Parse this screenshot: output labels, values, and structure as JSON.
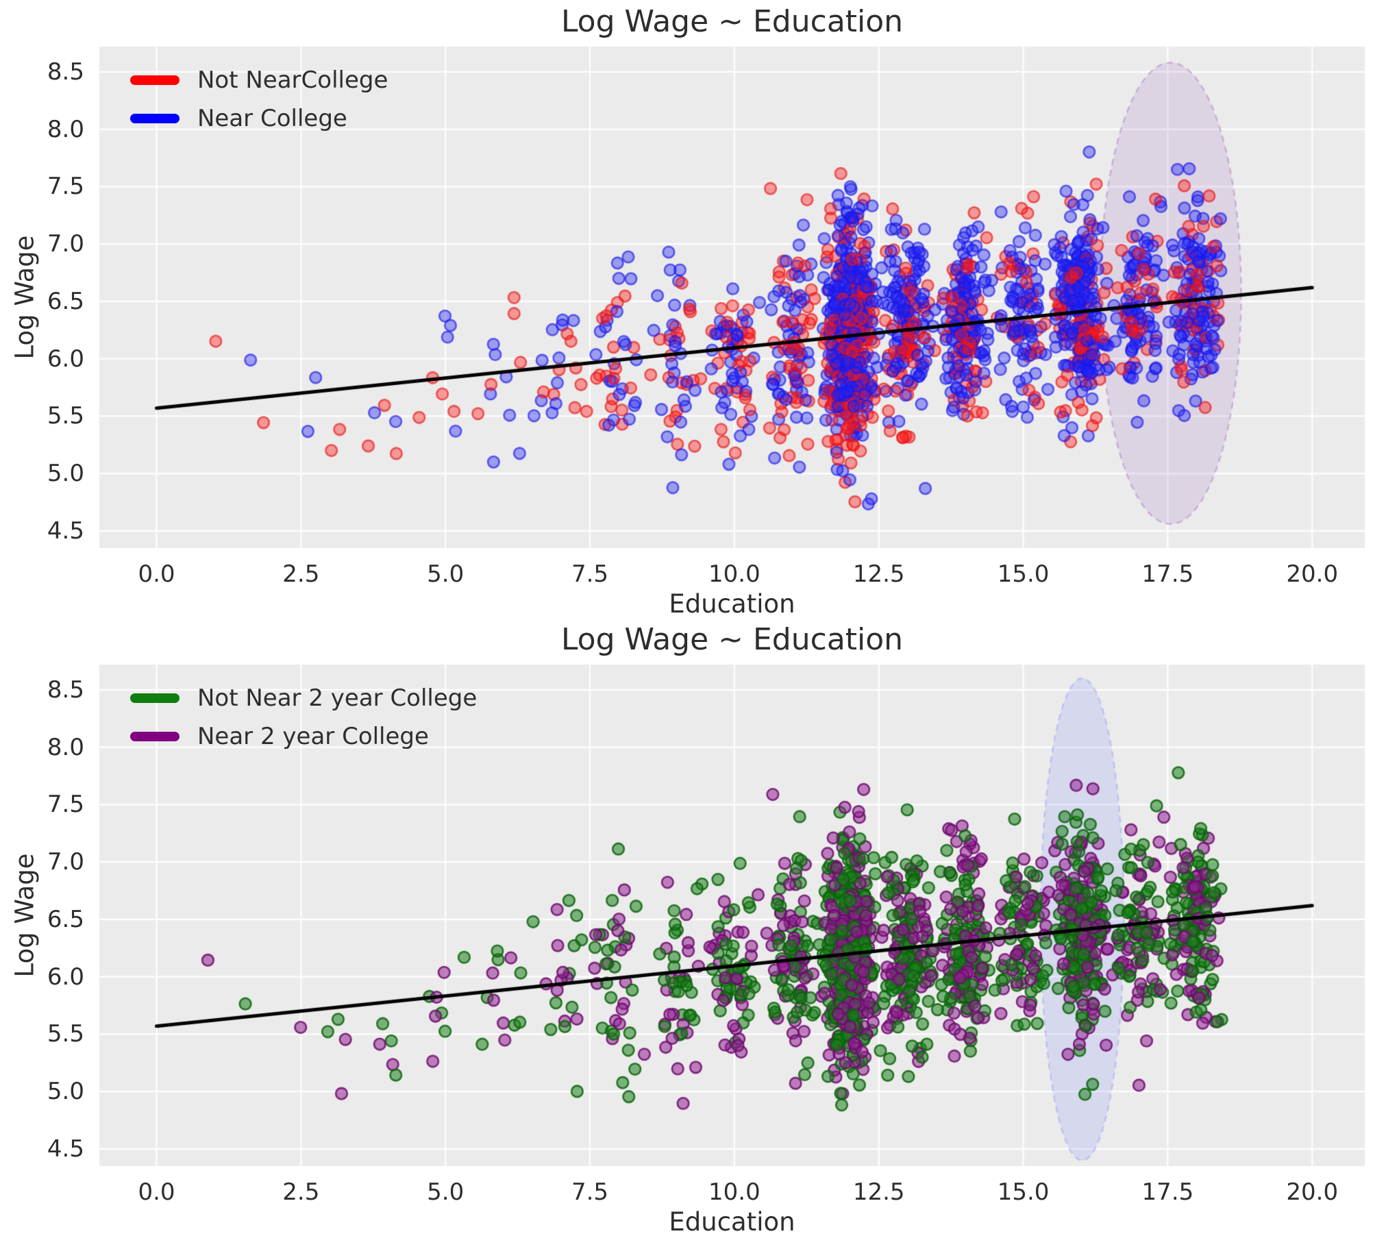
{
  "figure": {
    "background": "#ffffff",
    "panel_background": "#ebebeb",
    "grid_color": "#ffffff",
    "text_color": "#2d2d2d",
    "regression_color": "#000000"
  },
  "chart_data": [
    {
      "type": "scatter",
      "title": "Log Wage ~ Education",
      "xlabel": "Education",
      "ylabel": "Log Wage",
      "xlim": [
        -0.99,
        20.91
      ],
      "ylim": [
        4.35,
        8.72
      ],
      "grid": true,
      "x_ticks": [
        {
          "value": 0,
          "label": "0.0"
        },
        {
          "value": 2.5,
          "label": "2.5"
        },
        {
          "value": 5,
          "label": "5.0"
        },
        {
          "value": 7.5,
          "label": "7.5"
        },
        {
          "value": 10,
          "label": "10.0"
        },
        {
          "value": 12.5,
          "label": "12.5"
        },
        {
          "value": 15,
          "label": "15.0"
        },
        {
          "value": 17.5,
          "label": "17.5"
        },
        {
          "value": 20,
          "label": "20.0"
        }
      ],
      "y_ticks": [
        {
          "value": 4.5,
          "label": "4.5"
        },
        {
          "value": 5.0,
          "label": "5.0"
        },
        {
          "value": 5.5,
          "label": "5.5"
        },
        {
          "value": 6.0,
          "label": "6.0"
        },
        {
          "value": 6.5,
          "label": "6.5"
        },
        {
          "value": 7.0,
          "label": "7.0"
        },
        {
          "value": 7.5,
          "label": "7.5"
        },
        {
          "value": 8.0,
          "label": "8.0"
        },
        {
          "value": 8.5,
          "label": "8.5"
        }
      ],
      "legend": {
        "position": "upper-left",
        "items": [
          {
            "label": "Not NearCollege",
            "color": "#ff0000"
          },
          {
            "label": "Near College",
            "color": "#0000ff"
          }
        ]
      },
      "regression_line": {
        "x1": 0,
        "y1": 5.57,
        "x2": 20,
        "y2": 6.62,
        "linewidth": 5
      },
      "highlight_ellipse": {
        "cx": 17.55,
        "cy": 6.57,
        "rx": 1.22,
        "ry": 2.01,
        "fill": "rgba(175,130,200,0.22)",
        "edge": "rgba(185,140,205,0.60)",
        "dashed": true
      },
      "point_style": {
        "radius": 8.3,
        "border": 2.6,
        "jitter": 0.5
      },
      "seed": 42,
      "series": [
        {
          "name": "Not NearCollege",
          "fill": "rgba(255,25,25,0.40)",
          "edge": "rgba(235,20,20,0.65)",
          "clusters": [
            [
              1,
              1,
              6.2,
              0.05
            ],
            [
              2,
              1,
              5.5,
              0.1
            ],
            [
              3,
              2,
              5.3,
              0.15
            ],
            [
              4,
              3,
              5.2,
              0.3
            ],
            [
              5,
              4,
              5.75,
              0.25
            ],
            [
              6,
              5,
              5.85,
              0.35
            ],
            [
              7,
              9,
              5.95,
              0.4
            ],
            [
              8,
              18,
              6.0,
              0.42
            ],
            [
              9,
              20,
              5.95,
              0.42
            ],
            [
              10,
              30,
              6.05,
              0.42
            ],
            [
              11,
              45,
              6.1,
              0.45
            ],
            [
              12,
              210,
              6.12,
              0.47
            ],
            [
              13,
              60,
              6.2,
              0.42
            ],
            [
              14,
              55,
              6.25,
              0.42
            ],
            [
              15,
              33,
              6.3,
              0.4
            ],
            [
              16,
              80,
              6.35,
              0.42
            ],
            [
              17,
              30,
              6.4,
              0.4
            ],
            [
              18,
              45,
              6.42,
              0.42
            ]
          ]
        },
        {
          "name": "Near College",
          "fill": "rgba(35,35,245,0.40)",
          "edge": "rgba(25,25,235,0.65)",
          "clusters": [
            [
              2,
              1,
              5.85,
              0.1
            ],
            [
              3,
              2,
              5.45,
              0.35
            ],
            [
              4,
              2,
              5.6,
              0.3
            ],
            [
              5,
              4,
              5.85,
              0.3
            ],
            [
              6,
              7,
              5.7,
              0.4
            ],
            [
              7,
              11,
              6.0,
              0.4
            ],
            [
              8,
              22,
              6.05,
              0.42
            ],
            [
              9,
              25,
              6.05,
              0.42
            ],
            [
              10,
              40,
              6.1,
              0.42
            ],
            [
              11,
              55,
              6.15,
              0.45
            ],
            [
              12,
              340,
              6.25,
              0.47
            ],
            [
              13,
              120,
              6.3,
              0.42
            ],
            [
              14,
              125,
              6.35,
              0.42
            ],
            [
              15,
              77,
              6.4,
              0.4
            ],
            [
              16,
              200,
              6.45,
              0.42
            ],
            [
              17,
              80,
              6.5,
              0.4
            ],
            [
              18,
              115,
              6.52,
              0.42
            ]
          ]
        }
      ]
    },
    {
      "type": "scatter",
      "title": "Log Wage ~ Education",
      "xlabel": "Education",
      "ylabel": "Log Wage",
      "xlim": [
        -0.99,
        20.91
      ],
      "ylim": [
        4.35,
        8.72
      ],
      "grid": true,
      "x_ticks": [
        {
          "value": 0,
          "label": "0.0"
        },
        {
          "value": 2.5,
          "label": "2.5"
        },
        {
          "value": 5,
          "label": "5.0"
        },
        {
          "value": 7.5,
          "label": "7.5"
        },
        {
          "value": 10,
          "label": "10.0"
        },
        {
          "value": 12.5,
          "label": "12.5"
        },
        {
          "value": 15,
          "label": "15.0"
        },
        {
          "value": 17.5,
          "label": "17.5"
        },
        {
          "value": 20,
          "label": "20.0"
        }
      ],
      "y_ticks": [
        {
          "value": 4.5,
          "label": "4.5"
        },
        {
          "value": 5.0,
          "label": "5.0"
        },
        {
          "value": 5.5,
          "label": "5.5"
        },
        {
          "value": 6.0,
          "label": "6.0"
        },
        {
          "value": 6.5,
          "label": "6.5"
        },
        {
          "value": 7.0,
          "label": "7.0"
        },
        {
          "value": 7.5,
          "label": "7.5"
        },
        {
          "value": 8.0,
          "label": "8.0"
        },
        {
          "value": 8.5,
          "label": "8.5"
        }
      ],
      "legend": {
        "position": "upper-left",
        "items": [
          {
            "label": "Not Near 2 year College",
            "color": "#0f7d0f"
          },
          {
            "label": "Near 2 year College",
            "color": "#800080"
          }
        ]
      },
      "regression_line": {
        "x1": 0,
        "y1": 5.57,
        "x2": 20,
        "y2": 6.62,
        "linewidth": 5
      },
      "highlight_ellipse": {
        "cx": 16.02,
        "cy": 6.5,
        "rx": 0.72,
        "ry": 2.1,
        "fill": "rgba(150,160,245,0.25)",
        "edge": "rgba(160,170,245,0.55)",
        "dashed": true
      },
      "point_style": {
        "radius": 8.3,
        "border": 2.6,
        "jitter": 0.5
      },
      "seed": 7,
      "series": [
        {
          "name": "Not Near 2 year College",
          "fill": "rgba(30,130,30,0.55)",
          "edge": "rgba(10,100,10,0.85)",
          "clusters": [
            [
              2,
              1,
              5.85,
              0.1
            ],
            [
              3,
              2,
              5.5,
              0.3
            ],
            [
              4,
              3,
              5.3,
              0.35
            ],
            [
              5,
              4,
              5.8,
              0.3
            ],
            [
              6,
              7,
              5.8,
              0.4
            ],
            [
              7,
              11,
              6.0,
              0.4
            ],
            [
              8,
              22,
              6.0,
              0.42
            ],
            [
              9,
              25,
              6.0,
              0.42
            ],
            [
              10,
              40,
              6.1,
              0.42
            ],
            [
              11,
              55,
              6.12,
              0.45
            ],
            [
              12,
              300,
              6.2,
              0.47
            ],
            [
              13,
              100,
              6.27,
              0.42
            ],
            [
              14,
              100,
              6.3,
              0.42
            ],
            [
              15,
              60,
              6.35,
              0.4
            ],
            [
              16,
              150,
              6.4,
              0.42
            ],
            [
              17,
              60,
              6.45,
              0.4
            ],
            [
              18,
              90,
              6.5,
              0.42
            ]
          ]
        },
        {
          "name": "Near 2 year College",
          "fill": "rgba(145,35,145,0.55)",
          "edge": "rgba(110,10,110,0.85)",
          "clusters": [
            [
              1,
              1,
              6.2,
              0.05
            ],
            [
              2,
              1,
              5.5,
              0.1
            ],
            [
              3,
              2,
              5.3,
              0.2
            ],
            [
              4,
              2,
              5.5,
              0.3
            ],
            [
              5,
              4,
              5.8,
              0.3
            ],
            [
              6,
              5,
              5.75,
              0.4
            ],
            [
              7,
              9,
              5.95,
              0.4
            ],
            [
              8,
              18,
              6.0,
              0.42
            ],
            [
              9,
              20,
              6.05,
              0.42
            ],
            [
              10,
              30,
              6.05,
              0.42
            ],
            [
              11,
              45,
              6.12,
              0.45
            ],
            [
              12,
              250,
              6.18,
              0.47
            ],
            [
              13,
              80,
              6.25,
              0.42
            ],
            [
              14,
              80,
              6.3,
              0.42
            ],
            [
              15,
              50,
              6.35,
              0.4
            ],
            [
              16,
              130,
              6.4,
              0.42
            ],
            [
              17,
              50,
              6.45,
              0.4
            ],
            [
              18,
              70,
              6.5,
              0.42
            ]
          ]
        }
      ]
    }
  ]
}
